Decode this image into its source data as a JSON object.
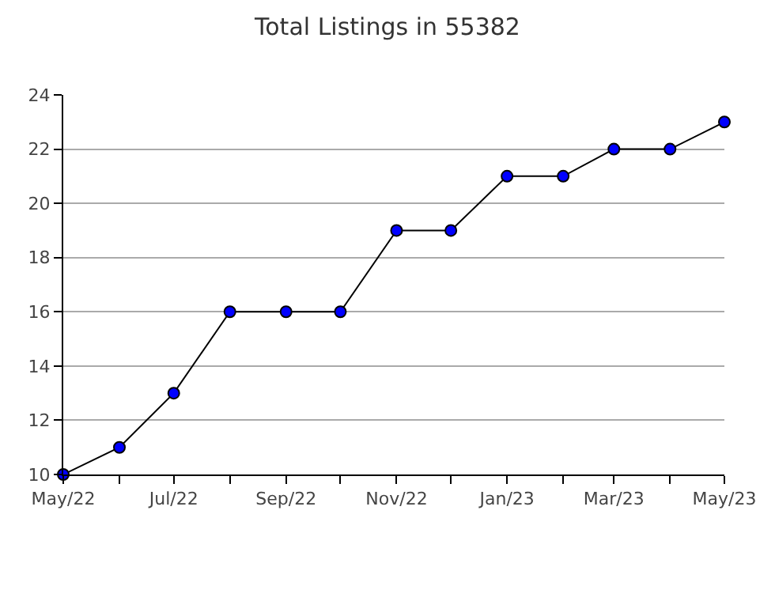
{
  "chart_data": {
    "type": "line",
    "title": "Total Listings in 55382",
    "x": [
      "2022-05",
      "2022-06",
      "2022-07",
      "2022-08",
      "2022-09",
      "2022-10",
      "2022-11",
      "2022-12",
      "2023-01",
      "2023-02",
      "2023-03",
      "2023-04",
      "2023-05"
    ],
    "series": [
      {
        "color": "#0000ff",
        "values": [
          10,
          11,
          13,
          16,
          16,
          16,
          19,
          19,
          21,
          21,
          22,
          22,
          23
        ]
      }
    ],
    "xlim": [
      "2022-05",
      "2023-05"
    ],
    "xticks": [
      {
        "value": "2022-05",
        "label": "May/22"
      },
      {
        "value": "2022-06",
        "label": null
      },
      {
        "value": "2022-07",
        "label": "Jul/22"
      },
      {
        "value": "2022-08",
        "label": null
      },
      {
        "value": "2022-09",
        "label": "Sep/22"
      },
      {
        "value": "2022-10",
        "label": null
      },
      {
        "value": "2022-11",
        "label": "Nov/22"
      },
      {
        "value": "2022-12",
        "label": null
      },
      {
        "value": "2023-01",
        "label": "Jan/23"
      },
      {
        "value": "2023-02",
        "label": null
      },
      {
        "value": "2023-03",
        "label": "Mar/23"
      },
      {
        "value": "2023-04",
        "label": null
      },
      {
        "value": "2023-05",
        "label": "May/23"
      }
    ],
    "ylim": [
      10,
      24
    ],
    "yticks": [
      10,
      12,
      14,
      16,
      18,
      20,
      22,
      24
    ],
    "grid": "y",
    "marker": "circle",
    "line_style": "solid",
    "legend": false
  }
}
